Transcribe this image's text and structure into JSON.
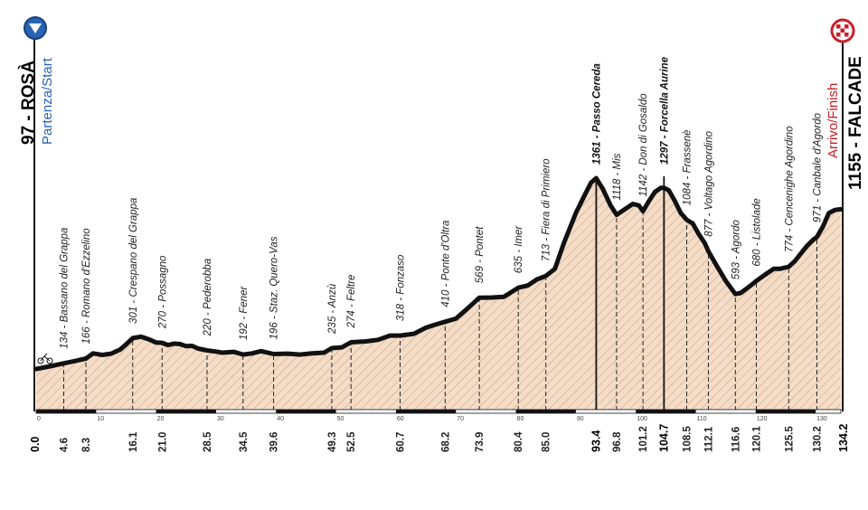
{
  "chart_data": {
    "type": "area",
    "x_range_km": [
      0,
      134.2
    ],
    "y_range_m": [
      0,
      1500
    ],
    "colors": {
      "fill": "#f4dcc6",
      "hatch": "#b58e6e",
      "profile": "#111111",
      "start_accent": "#2a63b4",
      "finish_accent": "#c8202a"
    },
    "start": {
      "altitude": "97",
      "name": "ROSÀ",
      "subtitle": "Partenza/Start",
      "km": 0.0,
      "icon": "chevron-down-icon"
    },
    "finish": {
      "altitude": "1155",
      "name": "FALCADE",
      "subtitle": "Arrivo/Finish",
      "km": 134.2,
      "icon": "checkered-flag-icon"
    },
    "profile_points": [
      [
        0,
        97
      ],
      [
        2,
        112
      ],
      [
        4.6,
        134
      ],
      [
        6.5,
        150
      ],
      [
        8.3,
        166
      ],
      [
        9.5,
        200
      ],
      [
        11,
        190
      ],
      [
        12.5,
        198
      ],
      [
        14,
        225
      ],
      [
        15,
        260
      ],
      [
        16.1,
        301
      ],
      [
        17.5,
        310
      ],
      [
        19,
        290
      ],
      [
        20,
        272
      ],
      [
        21,
        270
      ],
      [
        22,
        255
      ],
      [
        23,
        265
      ],
      [
        24,
        262
      ],
      [
        25,
        248
      ],
      [
        26,
        250
      ],
      [
        27,
        232
      ],
      [
        28.5,
        220
      ],
      [
        30,
        212
      ],
      [
        31,
        205
      ],
      [
        33,
        210
      ],
      [
        34.5,
        192
      ],
      [
        36,
        200
      ],
      [
        37.5,
        215
      ],
      [
        39.6,
        196
      ],
      [
        42,
        198
      ],
      [
        44,
        192
      ],
      [
        46,
        200
      ],
      [
        48,
        205
      ],
      [
        49.3,
        235
      ],
      [
        51,
        240
      ],
      [
        52.5,
        274
      ],
      [
        55,
        280
      ],
      [
        57,
        290
      ],
      [
        59,
        318
      ],
      [
        60.7,
        318
      ],
      [
        63,
        330
      ],
      [
        65,
        370
      ],
      [
        66.5,
        390
      ],
      [
        68.2,
        410
      ],
      [
        70,
        430
      ],
      [
        72,
        500
      ],
      [
        73.9,
        569
      ],
      [
        76,
        570
      ],
      [
        78,
        575
      ],
      [
        80.4,
        635
      ],
      [
        82,
        650
      ],
      [
        83.5,
        690
      ],
      [
        85,
        713
      ],
      [
        86.5,
        760
      ],
      [
        88,
        930
      ],
      [
        90,
        1130
      ],
      [
        91.5,
        1250
      ],
      [
        92.5,
        1330
      ],
      [
        93.4,
        1361
      ],
      [
        94.5,
        1290
      ],
      [
        95.8,
        1180
      ],
      [
        96.8,
        1118
      ],
      [
        98,
        1150
      ],
      [
        99.5,
        1190
      ],
      [
        100.5,
        1180
      ],
      [
        101.2,
        1142
      ],
      [
        102.2,
        1210
      ],
      [
        103.2,
        1270
      ],
      [
        104.2,
        1297
      ],
      [
        104.7,
        1297
      ],
      [
        105.5,
        1280
      ],
      [
        106.5,
        1210
      ],
      [
        107.5,
        1130
      ],
      [
        108.5,
        1084
      ],
      [
        109.5,
        1060
      ],
      [
        110.5,
        990
      ],
      [
        111.5,
        930
      ],
      [
        112.1,
        877
      ],
      [
        113.5,
        780
      ],
      [
        115,
        680
      ],
      [
        116.6,
        593
      ],
      [
        117.5,
        600
      ],
      [
        118.5,
        630
      ],
      [
        119.5,
        660
      ],
      [
        120.1,
        680
      ],
      [
        121.5,
        720
      ],
      [
        123,
        760
      ],
      [
        124,
        760
      ],
      [
        125.5,
        774
      ],
      [
        126.5,
        810
      ],
      [
        127.5,
        860
      ],
      [
        128.5,
        910
      ],
      [
        129.5,
        950
      ],
      [
        130.2,
        971
      ],
      [
        131.2,
        1040
      ],
      [
        132.2,
        1130
      ],
      [
        133.2,
        1150
      ],
      [
        134.2,
        1155
      ]
    ],
    "waypoints": [
      {
        "km": "4.6",
        "kmv": 4.6,
        "label": "134 - Bassano del Grappa",
        "bold": false
      },
      {
        "km": "8.3",
        "kmv": 8.3,
        "label": "166 - Romano d'Ezzelino",
        "bold": false
      },
      {
        "km": "16.1",
        "kmv": 16.1,
        "label": "301 - Crespano del Grappa",
        "bold": false
      },
      {
        "km": "21.0",
        "kmv": 21.0,
        "label": "270 - Possagno",
        "bold": false
      },
      {
        "km": "28.5",
        "kmv": 28.5,
        "label": "220 - Pederobba",
        "bold": false
      },
      {
        "km": "34.5",
        "kmv": 34.5,
        "label": "192 - Fener",
        "bold": false
      },
      {
        "km": "39.6",
        "kmv": 39.6,
        "label": "196 - Staz. Quero-Vas",
        "bold": false
      },
      {
        "km": "49.3",
        "kmv": 49.3,
        "label": "235 - Anzù",
        "bold": false
      },
      {
        "km": "52.5",
        "kmv": 52.5,
        "label": "274 - Feltre",
        "bold": false
      },
      {
        "km": "60.7",
        "kmv": 60.7,
        "label": "318 - Fonzaso",
        "bold": false
      },
      {
        "km": "68.2",
        "kmv": 68.2,
        "label": "410 - Ponte d'Oltra",
        "bold": false
      },
      {
        "km": "73.9",
        "kmv": 73.9,
        "label": "569 - Pontet",
        "bold": false
      },
      {
        "km": "80.4",
        "kmv": 80.4,
        "label": "635 - Imer",
        "bold": false
      },
      {
        "km": "85.0",
        "kmv": 85.0,
        "label": "713 - Fiera di Primiero",
        "bold": false
      },
      {
        "km": "93.4",
        "kmv": 93.4,
        "label": "1361 - Passo Cereda",
        "bold": true
      },
      {
        "km": "96.8",
        "kmv": 96.8,
        "label": "1118 - Mis",
        "bold": false
      },
      {
        "km": "101.2",
        "kmv": 101.2,
        "label": "1142 - Don di Gosaldo",
        "bold": false
      },
      {
        "km": "104.7",
        "kmv": 104.7,
        "label": "1297 - Forcella Aurine",
        "bold": true
      },
      {
        "km": "108.5",
        "kmv": 108.5,
        "label": "1084 - Frassenè",
        "bold": false
      },
      {
        "km": "112.1",
        "kmv": 112.1,
        "label": "877 - Voltago Agordino",
        "bold": false
      },
      {
        "km": "116.6",
        "kmv": 116.6,
        "label": "593 - Agordo",
        "bold": false
      },
      {
        "km": "120.1",
        "kmv": 120.1,
        "label": "680 - Listolade",
        "bold": false
      },
      {
        "km": "125.5",
        "kmv": 125.5,
        "label": "774 - Cencenighe Agordino",
        "bold": false
      },
      {
        "km": "130.2",
        "kmv": 130.2,
        "label": "971 - Canbale d'Agordo",
        "bold": false
      }
    ],
    "km_ticks": [
      "0",
      "10",
      "20",
      "30",
      "40",
      "50",
      "60",
      "70",
      "80",
      "90",
      "100",
      "110",
      "120",
      "130"
    ]
  }
}
